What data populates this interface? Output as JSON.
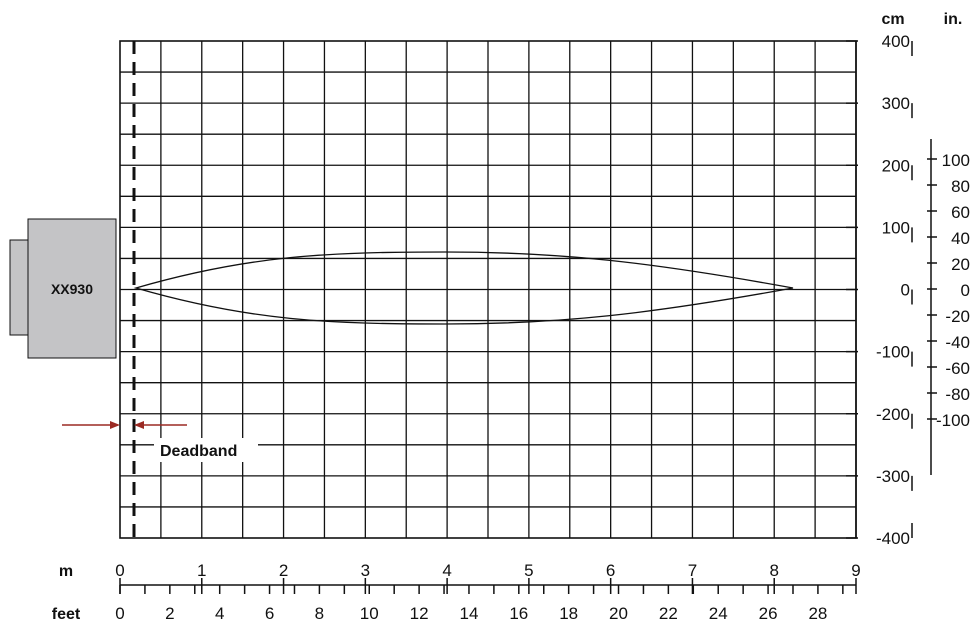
{
  "device": {
    "name": "XX930"
  },
  "deadband": {
    "label": "Deadband",
    "arrow_color": "#9b2a23"
  },
  "axes": {
    "meters": {
      "unit": "m",
      "ticks": [
        "0",
        "1",
        "2",
        "3",
        "4",
        "5",
        "6",
        "7",
        "8",
        "9"
      ]
    },
    "feet": {
      "unit": "feet",
      "ticks": [
        "0",
        "2",
        "4",
        "6",
        "8",
        "10",
        "12",
        "14",
        "16",
        "18",
        "20",
        "22",
        "24",
        "26",
        "28"
      ]
    },
    "cm": {
      "unit": "cm",
      "ticks": [
        "400",
        "300",
        "200",
        "100",
        "0",
        "-100",
        "-200",
        "-300",
        "-400"
      ]
    },
    "inches": {
      "unit": "in.",
      "ticks": [
        "100",
        "80",
        "60",
        "40",
        "20",
        "0",
        "-20",
        "-40",
        "-60",
        "-80",
        "-100"
      ]
    }
  },
  "colors": {
    "device_fill": "#c4c4c6",
    "line": "#111111"
  }
}
